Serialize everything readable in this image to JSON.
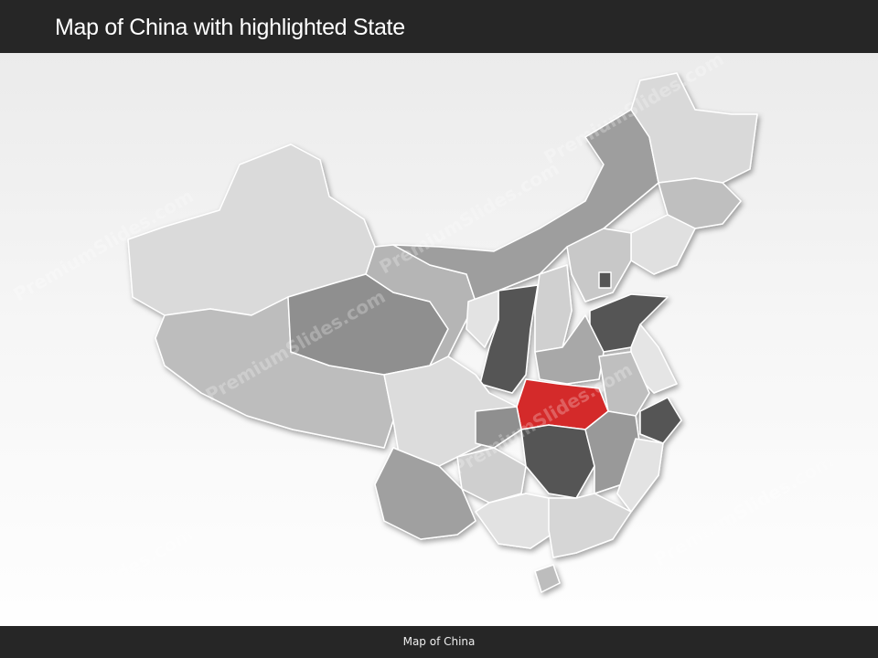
{
  "header": {
    "title": "Map of China with highlighted State"
  },
  "footer": {
    "caption": "Map of China"
  },
  "map": {
    "highlight_color": "#d42a2a",
    "dark_color": "#555555",
    "mid_color": "#999999",
    "light_color": "#d8d8d8"
  },
  "watermark": "PremiumSlides.com"
}
